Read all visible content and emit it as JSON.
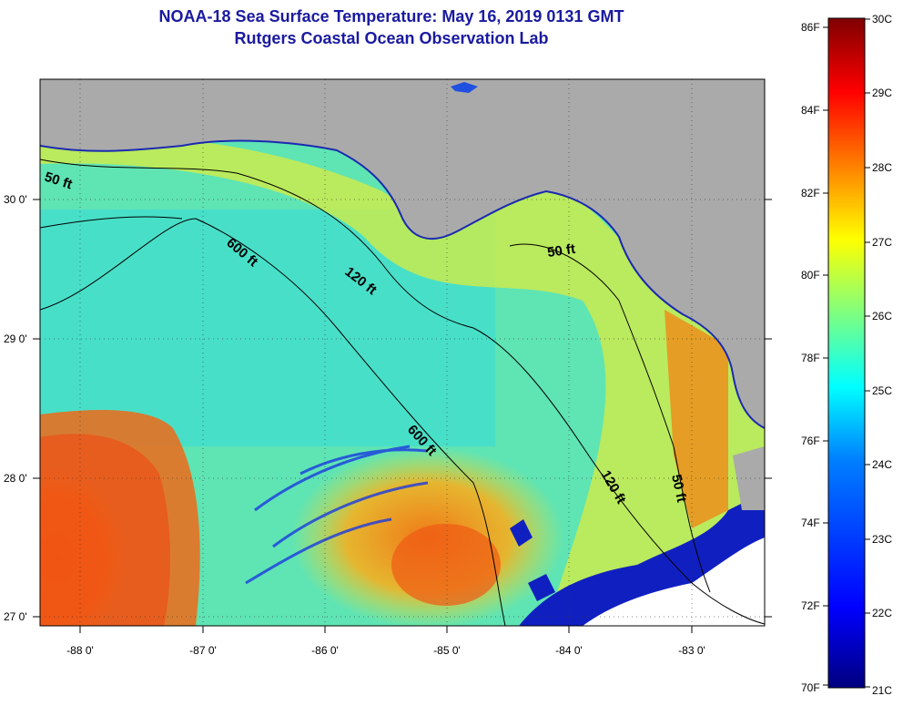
{
  "header": {
    "title": "NOAA-18 Sea Surface Temperature:  May 16, 2019 0131 GMT",
    "subtitle": "Rutgers Coastal Ocean Observation Lab"
  },
  "map": {
    "region": "Northeastern Gulf of Mexico",
    "lon_ticks": [
      "-88 0'",
      "-87 0'",
      "-86 0'",
      "-85 0'",
      "-84 0'",
      "-83 0'"
    ],
    "lat_ticks": [
      "30 0'",
      "29 0'",
      "28 0'",
      "27 0'"
    ],
    "lon_range": [
      -88.35,
      -82.45
    ],
    "lat_range": [
      26.95,
      30.85
    ],
    "contours": [
      {
        "label": "50 ft"
      },
      {
        "label": "600 ft"
      },
      {
        "label": "120 ft"
      },
      {
        "label": "50 ft"
      },
      {
        "label": "600 ft"
      },
      {
        "label": "120 ft"
      },
      {
        "label": "50 ft"
      }
    ],
    "colors": {
      "land": "#aaaaaa",
      "cloud": "#ffffff",
      "title": "#1a1aa0"
    }
  },
  "colorbar": {
    "fahrenheit_labels": [
      "86F",
      "84F",
      "82F",
      "80F",
      "78F",
      "76F",
      "74F",
      "72F",
      "70F"
    ],
    "celsius_labels": [
      "30C",
      "29C",
      "28C",
      "27C",
      "26C",
      "25C",
      "24C",
      "23C",
      "22C",
      "21C"
    ],
    "range_c": [
      21,
      30
    ],
    "stops": [
      "#00007f",
      "#0000ff",
      "#007fff",
      "#00ffff",
      "#7fff7f",
      "#ffff00",
      "#ff7f00",
      "#ff0000",
      "#7f0000"
    ]
  }
}
